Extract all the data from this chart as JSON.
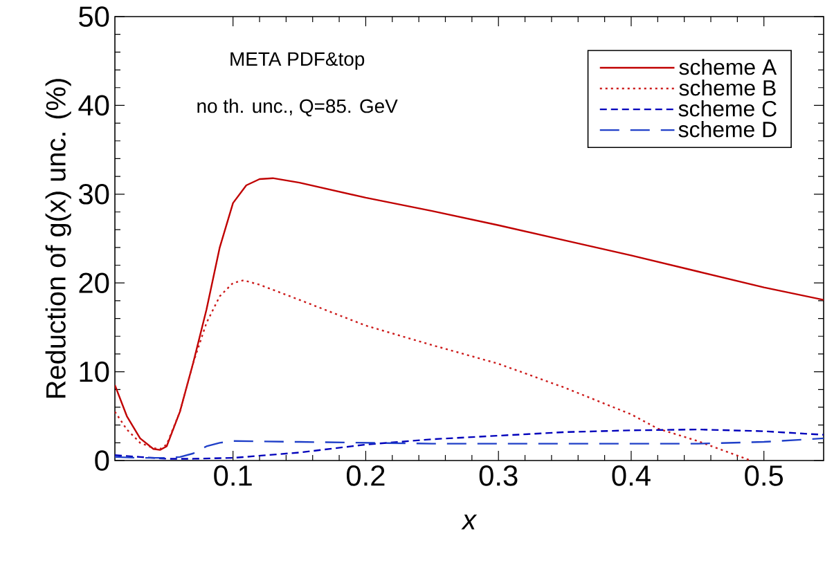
{
  "chart_data": {
    "type": "line",
    "xlabel": "x",
    "ylabel": "Reduction of g(x) unc. (%)",
    "annotations": [
      "META PDF&top",
      "no th. unc., Q=85. GeV"
    ],
    "xlim": [
      0.011,
      0.545
    ],
    "ylim": [
      0,
      50
    ],
    "xticks": [
      0.1,
      0.2,
      0.3,
      0.4,
      0.5
    ],
    "yticks": [
      0,
      10,
      20,
      30,
      40,
      50
    ],
    "grid": false,
    "legend": "top right",
    "marker": "none",
    "series": [
      {
        "name": "scheme A",
        "color": "#c00000",
        "line_style": "solid",
        "x": [
          0.011,
          0.02,
          0.03,
          0.04,
          0.045,
          0.05,
          0.06,
          0.07,
          0.08,
          0.09,
          0.1,
          0.11,
          0.12,
          0.13,
          0.15,
          0.2,
          0.25,
          0.3,
          0.35,
          0.4,
          0.45,
          0.5,
          0.545
        ],
        "values": [
          8.5,
          5,
          2.5,
          1.3,
          1.2,
          1.6,
          5.5,
          11,
          17,
          24,
          29,
          31,
          31.7,
          31.8,
          31.3,
          29.6,
          28.1,
          26.5,
          24.8,
          23.1,
          21.3,
          19.5,
          18.1
        ]
      },
      {
        "name": "scheme B",
        "color": "#cc1a1a",
        "line_style": "dotted",
        "x": [
          0.011,
          0.02,
          0.03,
          0.04,
          0.045,
          0.05,
          0.06,
          0.07,
          0.08,
          0.09,
          0.1,
          0.108,
          0.12,
          0.15,
          0.2,
          0.25,
          0.3,
          0.35,
          0.4,
          0.42,
          0.45,
          0.49
        ],
        "values": [
          5.5,
          3.5,
          2,
          1.4,
          1.3,
          1.8,
          5.5,
          11,
          15.5,
          18.5,
          20,
          20.3,
          19.8,
          18.1,
          15.2,
          13,
          10.9,
          8.2,
          5.2,
          3.6,
          2.2,
          0
        ]
      },
      {
        "name": "scheme C",
        "color": "#0000bb",
        "line_style": "dashed",
        "x": [
          0.011,
          0.03,
          0.05,
          0.07,
          0.1,
          0.15,
          0.2,
          0.25,
          0.3,
          0.35,
          0.4,
          0.45,
          0.5,
          0.545
        ],
        "values": [
          0.6,
          0.4,
          0.2,
          0.2,
          0.3,
          0.9,
          1.8,
          2.4,
          2.8,
          3.2,
          3.4,
          3.5,
          3.3,
          2.9
        ]
      },
      {
        "name": "scheme D",
        "color": "#1f3fc8",
        "line_style": "dashed",
        "x": [
          0.011,
          0.03,
          0.05,
          0.06,
          0.07,
          0.08,
          0.09,
          0.1,
          0.15,
          0.2,
          0.25,
          0.3,
          0.35,
          0.4,
          0.45,
          0.5,
          0.545
        ],
        "values": [
          0.4,
          0.3,
          0.3,
          0.4,
          0.8,
          1.6,
          2.0,
          2.2,
          2.1,
          2.0,
          1.9,
          1.9,
          1.9,
          1.9,
          1.9,
          2.1,
          2.5
        ]
      }
    ]
  }
}
